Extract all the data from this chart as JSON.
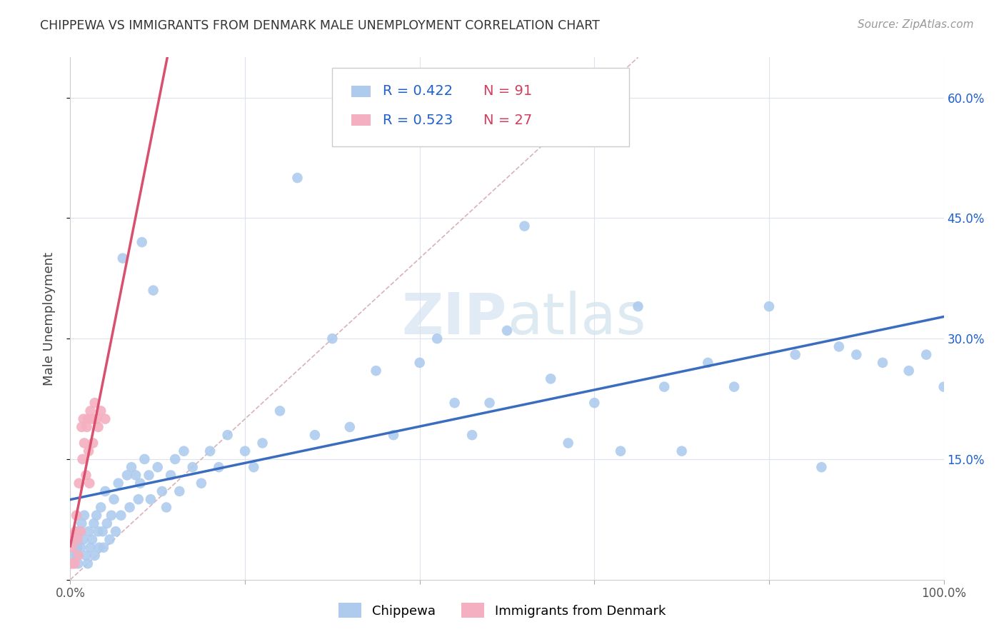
{
  "title": "CHIPPEWA VS IMMIGRANTS FROM DENMARK MALE UNEMPLOYMENT CORRELATION CHART",
  "source": "Source: ZipAtlas.com",
  "ylabel": "Male Unemployment",
  "xlim": [
    0,
    1.0
  ],
  "ylim": [
    0,
    0.65
  ],
  "chippewa_color": "#aecbee",
  "denmark_color": "#f4afc0",
  "chippewa_line_color": "#3a6dbf",
  "denmark_line_color": "#d94f6e",
  "diagonal_color": "#d4aab0",
  "R_chippewa": "0.422",
  "N_chippewa": "91",
  "R_denmark": "0.523",
  "N_denmark": "27",
  "text_dark": "#444444",
  "text_blue": "#2060cc",
  "text_red": "#d04060",
  "background_color": "#ffffff",
  "grid_color": "#dde3ee",
  "chippewa_x": [
    0.001,
    0.003,
    0.005,
    0.007,
    0.008,
    0.009,
    0.01,
    0.012,
    0.013,
    0.015,
    0.016,
    0.018,
    0.02,
    0.021,
    0.023,
    0.025,
    0.027,
    0.028,
    0.03,
    0.032,
    0.033,
    0.035,
    0.037,
    0.038,
    0.04,
    0.042,
    0.045,
    0.047,
    0.05,
    0.052,
    0.055,
    0.058,
    0.06,
    0.065,
    0.068,
    0.07,
    0.075,
    0.078,
    0.08,
    0.082,
    0.085,
    0.09,
    0.092,
    0.095,
    0.1,
    0.105,
    0.11,
    0.115,
    0.12,
    0.125,
    0.13,
    0.14,
    0.15,
    0.16,
    0.17,
    0.18,
    0.2,
    0.21,
    0.22,
    0.24,
    0.26,
    0.28,
    0.3,
    0.32,
    0.35,
    0.37,
    0.4,
    0.42,
    0.44,
    0.46,
    0.48,
    0.5,
    0.52,
    0.55,
    0.57,
    0.6,
    0.63,
    0.65,
    0.68,
    0.7,
    0.73,
    0.76,
    0.8,
    0.83,
    0.86,
    0.88,
    0.9,
    0.93,
    0.96,
    0.98,
    1.0
  ],
  "chippewa_y": [
    0.03,
    0.02,
    0.05,
    0.03,
    0.04,
    0.02,
    0.06,
    0.04,
    0.07,
    0.05,
    0.08,
    0.03,
    0.02,
    0.06,
    0.04,
    0.05,
    0.07,
    0.03,
    0.08,
    0.06,
    0.04,
    0.09,
    0.06,
    0.04,
    0.11,
    0.07,
    0.05,
    0.08,
    0.1,
    0.06,
    0.12,
    0.08,
    0.4,
    0.13,
    0.09,
    0.14,
    0.13,
    0.1,
    0.12,
    0.42,
    0.15,
    0.13,
    0.1,
    0.36,
    0.14,
    0.11,
    0.09,
    0.13,
    0.15,
    0.11,
    0.16,
    0.14,
    0.12,
    0.16,
    0.14,
    0.18,
    0.16,
    0.14,
    0.17,
    0.21,
    0.5,
    0.18,
    0.3,
    0.19,
    0.26,
    0.18,
    0.27,
    0.3,
    0.22,
    0.18,
    0.22,
    0.31,
    0.44,
    0.25,
    0.17,
    0.22,
    0.16,
    0.34,
    0.24,
    0.16,
    0.27,
    0.24,
    0.34,
    0.28,
    0.14,
    0.29,
    0.28,
    0.27,
    0.26,
    0.28,
    0.24
  ],
  "denmark_x": [
    0.001,
    0.002,
    0.003,
    0.005,
    0.006,
    0.007,
    0.008,
    0.009,
    0.01,
    0.012,
    0.013,
    0.014,
    0.015,
    0.016,
    0.018,
    0.019,
    0.02,
    0.021,
    0.022,
    0.023,
    0.025,
    0.026,
    0.028,
    0.03,
    0.032,
    0.035,
    0.04
  ],
  "denmark_y": [
    0.02,
    0.04,
    0.055,
    0.02,
    0.06,
    0.08,
    0.05,
    0.03,
    0.12,
    0.06,
    0.19,
    0.15,
    0.2,
    0.17,
    0.13,
    0.19,
    0.2,
    0.16,
    0.12,
    0.21,
    0.2,
    0.17,
    0.22,
    0.2,
    0.19,
    0.21,
    0.2
  ]
}
